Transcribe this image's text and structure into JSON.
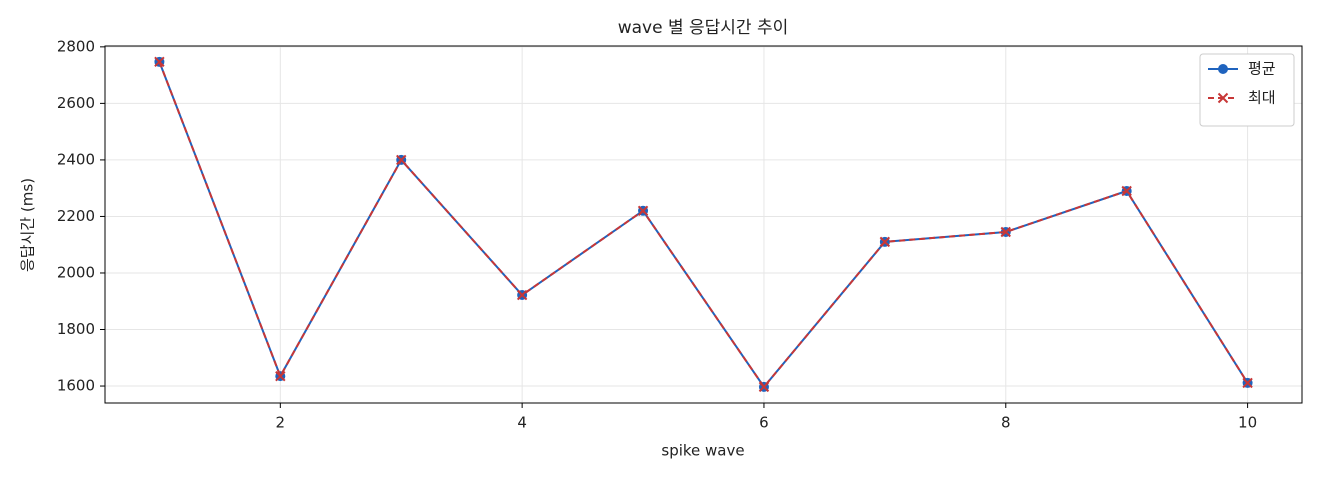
{
  "chart_data": {
    "type": "line",
    "title": "wave 별 응답시간 추이",
    "xlabel": "spike wave",
    "ylabel": "응답시간 (ms)",
    "x": [
      1,
      2,
      3,
      4,
      5,
      6,
      7,
      8,
      9,
      10
    ],
    "series": [
      {
        "name": "평균",
        "color": "#1f63be",
        "marker": "o",
        "dash": false,
        "values": [
          2747,
          1635,
          2400,
          1922,
          2220,
          1597,
          2110,
          2145,
          2290,
          1611
        ]
      },
      {
        "name": "최대",
        "color": "#c83737",
        "marker": "x",
        "dash": true,
        "values": [
          2747,
          1635,
          2400,
          1922,
          2220,
          1597,
          2110,
          2145,
          2290,
          1611
        ]
      }
    ],
    "xlim": [
      0.55,
      10.45
    ],
    "ylim": [
      1540,
      2803
    ],
    "xticks": [
      2,
      4,
      6,
      8,
      10
    ],
    "yticks": [
      1600,
      1800,
      2000,
      2200,
      2400,
      2600,
      2800
    ],
    "grid": true,
    "legend": "upper right"
  }
}
